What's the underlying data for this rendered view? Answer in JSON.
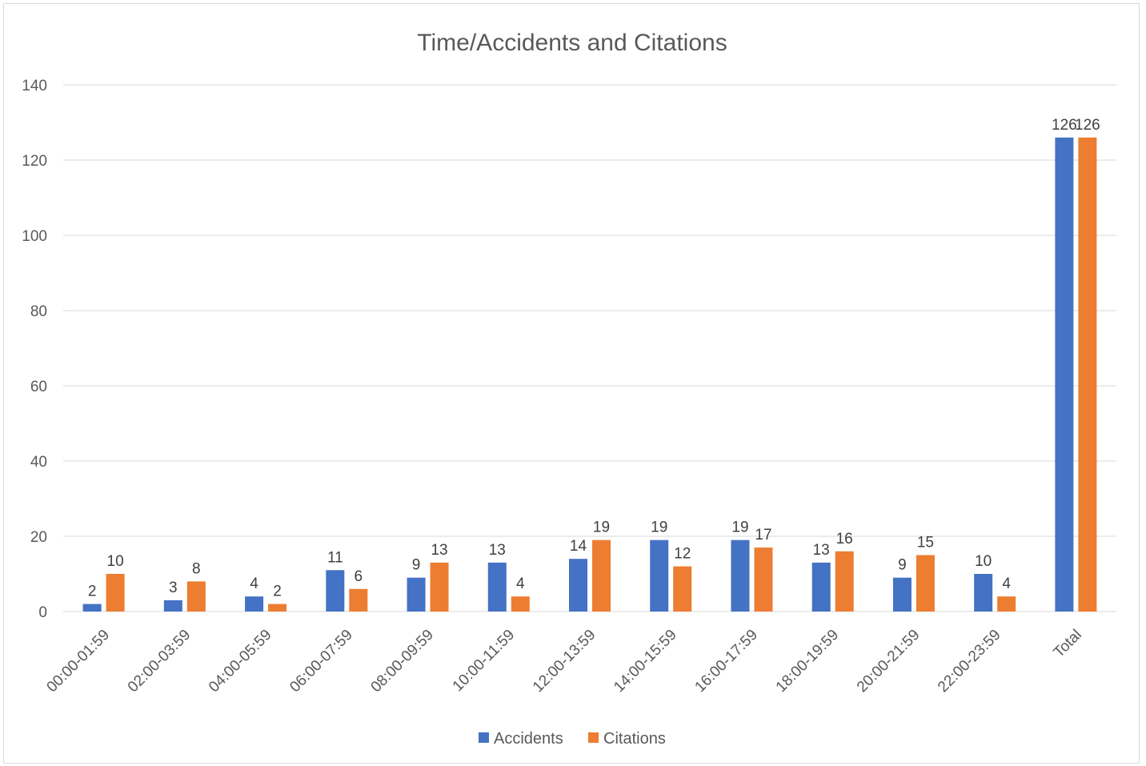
{
  "chart_data": {
    "type": "bar",
    "title": "Time/Accidents and Citations",
    "xlabel": "",
    "ylabel": "",
    "ylim": [
      0,
      140
    ],
    "yticks": [
      0,
      20,
      40,
      60,
      80,
      100,
      120,
      140
    ],
    "grid": true,
    "legend_position": "bottom",
    "categories": [
      "00:00-01:59",
      "02:00-03:59",
      "04:00-05:59",
      "06:00-07:59",
      "08:00-09:59",
      "10:00-11:59",
      "12:00-13:59",
      "14:00-15:59",
      "16:00-17:59",
      "18:00-19:59",
      "20:00-21:59",
      "22:00-23:59",
      "Total"
    ],
    "series": [
      {
        "name": "Accidents",
        "color": "#4472C4",
        "values": [
          2,
          3,
          4,
          11,
          9,
          13,
          14,
          19,
          19,
          13,
          9,
          10,
          126
        ]
      },
      {
        "name": "Citations",
        "color": "#ED7D31",
        "values": [
          10,
          8,
          2,
          6,
          13,
          4,
          19,
          12,
          17,
          16,
          15,
          4,
          126
        ]
      }
    ]
  }
}
